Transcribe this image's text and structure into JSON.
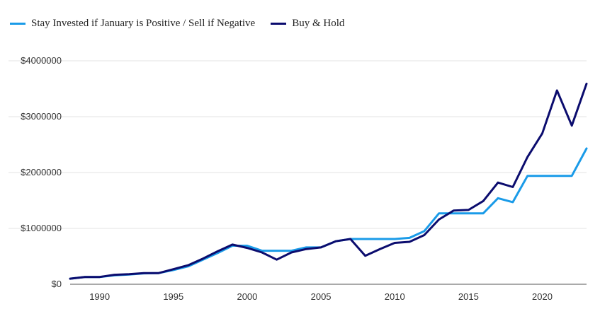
{
  "chart_data": {
    "type": "line",
    "title": "",
    "xlabel": "",
    "ylabel": "",
    "xlim": [
      1988,
      2023
    ],
    "ylim": [
      0,
      4000000
    ],
    "x_ticks": [
      1990,
      1995,
      2000,
      2005,
      2010,
      2015,
      2020
    ],
    "y_ticks": [
      0,
      1000000,
      2000000,
      3000000,
      4000000
    ],
    "y_tick_labels": [
      "$0",
      "$1000000",
      "$2000000",
      "$3000000",
      "$4000000"
    ],
    "grid": "horizontal",
    "legend_position": "top-left",
    "x": [
      1988,
      1989,
      1990,
      1991,
      1992,
      1993,
      1994,
      1995,
      1996,
      1997,
      1998,
      1999,
      2000,
      2001,
      2002,
      2003,
      2004,
      2005,
      2006,
      2007,
      2008,
      2009,
      2010,
      2011,
      2012,
      2013,
      2014,
      2015,
      2016,
      2017,
      2018,
      2019,
      2020,
      2021,
      2022,
      2023
    ],
    "series": [
      {
        "name": "Stay Invested if January is Positive / Sell if Negative",
        "color": "#1a9be8",
        "values": [
          100000,
          130000,
          130000,
          160000,
          175000,
          195000,
          200000,
          255000,
          320000,
          440000,
          560000,
          690000,
          690000,
          600000,
          600000,
          600000,
          660000,
          660000,
          770000,
          810000,
          810000,
          810000,
          810000,
          830000,
          950000,
          1270000,
          1270000,
          1270000,
          1270000,
          1540000,
          1470000,
          1940000,
          1940000,
          1940000,
          1940000,
          2430000
        ]
      },
      {
        "name": "Buy & Hold",
        "color": "#0b0c6e",
        "values": [
          100000,
          130000,
          130000,
          170000,
          180000,
          200000,
          200000,
          270000,
          340000,
          460000,
          590000,
          710000,
          650000,
          570000,
          440000,
          570000,
          630000,
          660000,
          770000,
          810000,
          510000,
          630000,
          740000,
          760000,
          880000,
          1160000,
          1320000,
          1330000,
          1490000,
          1820000,
          1740000,
          2280000,
          2700000,
          3470000,
          2840000,
          3590000
        ]
      }
    ]
  }
}
